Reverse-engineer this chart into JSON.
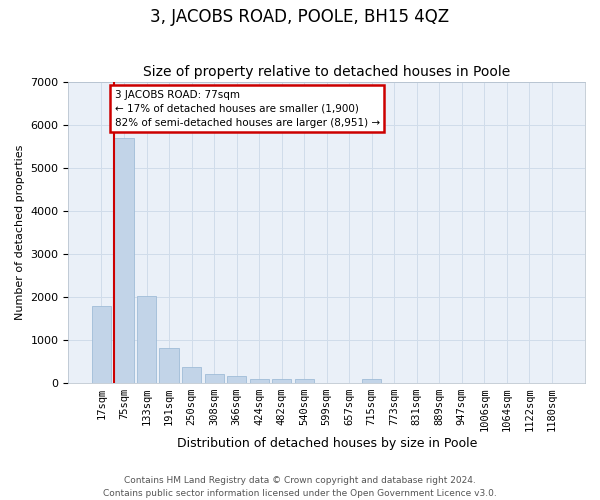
{
  "title": "3, JACOBS ROAD, POOLE, BH15 4QZ",
  "subtitle": "Size of property relative to detached houses in Poole",
  "xlabel": "Distribution of detached houses by size in Poole",
  "ylabel": "Number of detached properties",
  "footer_line1": "Contains HM Land Registry data © Crown copyright and database right 2024.",
  "footer_line2": "Contains public sector information licensed under the Open Government Licence v3.0.",
  "bar_labels": [
    "17sqm",
    "75sqm",
    "133sqm",
    "191sqm",
    "250sqm",
    "308sqm",
    "366sqm",
    "424sqm",
    "482sqm",
    "540sqm",
    "599sqm",
    "657sqm",
    "715sqm",
    "773sqm",
    "831sqm",
    "889sqm",
    "947sqm",
    "1006sqm",
    "1064sqm",
    "1122sqm",
    "1180sqm"
  ],
  "bar_values": [
    1780,
    5700,
    2030,
    800,
    370,
    210,
    160,
    100,
    90,
    80,
    0,
    0,
    90,
    0,
    0,
    0,
    0,
    0,
    0,
    0,
    0
  ],
  "bar_color": "#c2d4e8",
  "bar_edge_color": "#a0bcd8",
  "property_line_color": "#cc0000",
  "annotation_box_edge_color": "#cc0000",
  "annotation_box_facecolor": "#ffffff",
  "grid_color": "#d0dcea",
  "background_color": "#eaf0f8",
  "ylim": [
    0,
    7000
  ],
  "title_fontsize": 12,
  "subtitle_fontsize": 10,
  "ylabel_fontsize": 8,
  "xlabel_fontsize": 9,
  "tick_fontsize": 7.5,
  "footer_fontsize": 6.5
}
